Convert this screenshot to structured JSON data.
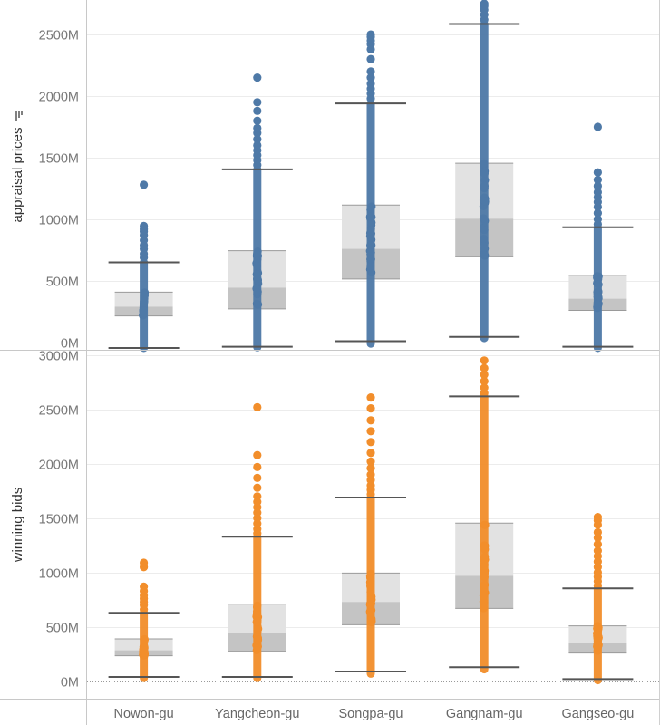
{
  "chart_data": {
    "type": "boxplot",
    "categories": [
      "Nowon-gu",
      "Yangcheon-gu",
      "Songpa-gu",
      "Gangnam-gu",
      "Gangseo-gu"
    ],
    "unit_suffix": "M",
    "panels": [
      {
        "ylabel": "appraisal prices",
        "ylabel_icon": "sort-icon",
        "ylim": [
          -60,
          2780
        ],
        "yticks": [
          0,
          500,
          1000,
          1500,
          2000,
          2500
        ],
        "tick_labels": [
          "0M",
          "500M",
          "1000M",
          "1500M",
          "2000M",
          "2500M"
        ],
        "color": "#4e79a7",
        "zero_line": false,
        "boxes": [
          {
            "whisker_low": -45,
            "q1": 215,
            "median": 290,
            "q3": 408,
            "whisker_high": 650,
            "outliers": [
              690,
              720,
              760,
              790,
              830,
              870,
              900,
              920,
              945,
              1280
            ],
            "data_min": -45,
            "data_max": 650
          },
          {
            "whisker_low": -35,
            "q1": 272,
            "median": 445,
            "q3": 745,
            "whisker_high": 1405,
            "outliers": [
              1440,
              1480,
              1520,
              1560,
              1600,
              1650,
              1700,
              1740,
              1800,
              1880,
              1950,
              2150
            ],
            "data_min": -40,
            "data_max": 1405
          },
          {
            "whisker_low": 10,
            "q1": 515,
            "median": 760,
            "q3": 1115,
            "whisker_high": 1940,
            "outliers": [
              1980,
              2020,
              2060,
              2100,
              2150,
              2200,
              2300,
              2380,
              2420,
              2450,
              2480,
              2500
            ],
            "data_min": -10,
            "data_max": 1940
          },
          {
            "whisker_low": 45,
            "q1": 695,
            "median": 1005,
            "q3": 1455,
            "whisker_high": 2585,
            "outliers": [
              2620,
              2660,
              2700,
              2730,
              2750
            ],
            "data_min": 35,
            "data_max": 2585
          },
          {
            "whisker_low": -35,
            "q1": 260,
            "median": 355,
            "q3": 545,
            "whisker_high": 935,
            "outliers": [
              960,
              1000,
              1050,
              1100,
              1140,
              1180,
              1220,
              1270,
              1320,
              1380,
              1750
            ],
            "data_min": -45,
            "data_max": 935
          }
        ]
      },
      {
        "ylabel": "winning bids",
        "ylim": [
          -160,
          3040
        ],
        "yticks": [
          0,
          500,
          1000,
          1500,
          2000,
          2500,
          3000
        ],
        "tick_labels": [
          "0M",
          "500M",
          "1000M",
          "1500M",
          "2000M",
          "2500M",
          "3000M"
        ],
        "color": "#f28e2b",
        "zero_line": true,
        "boxes": [
          {
            "whisker_low": 40,
            "q1": 235,
            "median": 285,
            "q3": 390,
            "whisker_high": 630,
            "outliers": [
              660,
              700,
              730,
              760,
              790,
              830,
              870,
              1050,
              1090
            ],
            "data_min": 30,
            "data_max": 630
          },
          {
            "whisker_low": 40,
            "q1": 275,
            "median": 440,
            "q3": 710,
            "whisker_high": 1330,
            "outliers": [
              1360,
              1400,
              1450,
              1500,
              1550,
              1600,
              1650,
              1700,
              1780,
              1870,
              1970,
              2080,
              2520
            ],
            "data_min": 30,
            "data_max": 1330
          },
          {
            "whisker_low": 90,
            "q1": 520,
            "median": 730,
            "q3": 995,
            "whisker_high": 1690,
            "outliers": [
              1720,
              1760,
              1800,
              1850,
              1900,
              1960,
              2020,
              2100,
              2200,
              2300,
              2400,
              2510,
              2610
            ],
            "data_min": 70,
            "data_max": 1690
          },
          {
            "whisker_low": 130,
            "q1": 670,
            "median": 970,
            "q3": 1455,
            "whisker_high": 2620,
            "outliers": [
              2650,
              2700,
              2760,
              2820,
              2880,
              2950
            ],
            "data_min": 110,
            "data_max": 2620
          },
          {
            "whisker_low": 20,
            "q1": 260,
            "median": 350,
            "q3": 510,
            "whisker_high": 855,
            "outliers": [
              880,
              920,
              960,
              1000,
              1050,
              1100,
              1150,
              1200,
              1260,
              1320,
              1370,
              1440,
              1480,
              1510
            ],
            "data_min": 10,
            "data_max": 855
          }
        ]
      }
    ],
    "grid": true,
    "legend": "none"
  }
}
